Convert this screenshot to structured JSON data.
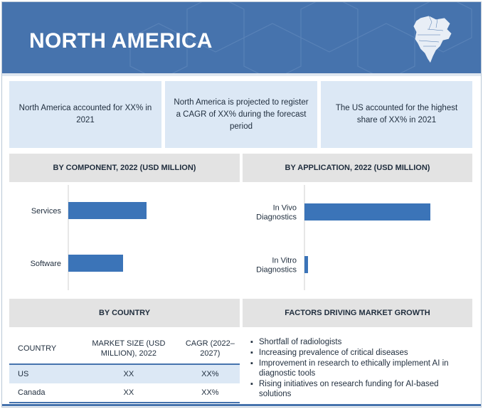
{
  "header": {
    "title": "NORTH AMERICA",
    "map_icon": "north-america-map-icon",
    "background_color": "#4673ad"
  },
  "stats": [
    {
      "text": "North America accounted for XX% in 2021"
    },
    {
      "text": "North America is projected to register a CAGR of XX% during the forecast period"
    },
    {
      "text": "The US accounted for the highest share of XX% in 2021"
    }
  ],
  "sections": {
    "component": "BY COMPONENT, 2022 (USD MILLION)",
    "application": "BY APPLICATION, 2022 (USD MILLION)",
    "country": "BY COUNTRY",
    "factors": "FACTORS DRIVING MARKET GROWTH"
  },
  "chart_data": [
    {
      "type": "bar",
      "orientation": "horizontal",
      "title": "BY COMPONENT, 2022 (USD MILLION)",
      "categories": [
        "Services",
        "Software"
      ],
      "values": [
        110,
        77
      ],
      "xlim": [
        0,
        230
      ],
      "grid": false,
      "bar_color": "#3b74b8"
    },
    {
      "type": "bar",
      "orientation": "horizontal",
      "title": "BY APPLICATION, 2022 (USD MILLION)",
      "categories": [
        [
          "In Vivo",
          "Diagnostics"
        ],
        [
          "In Vitro",
          "Diagnostics"
        ]
      ],
      "values": [
        177,
        5
      ],
      "xlim": [
        0,
        230
      ],
      "grid": false,
      "bar_color": "#3b74b8"
    }
  ],
  "country_table": {
    "headers": [
      "COUNTRY",
      "MARKET SIZE (USD MILLION), 2022",
      "CAGR (2022–2027)"
    ],
    "rows": [
      [
        "US",
        "XX",
        "XX%"
      ],
      [
        "Canada",
        "XX",
        "XX%"
      ]
    ]
  },
  "factors": [
    "Shortfall of radiologists",
    "Increasing prevalence of critical diseases",
    "Improvement in research to ethically implement AI in diagnostic tools",
    "Rising initiatives on research funding for AI-based solutions"
  ]
}
